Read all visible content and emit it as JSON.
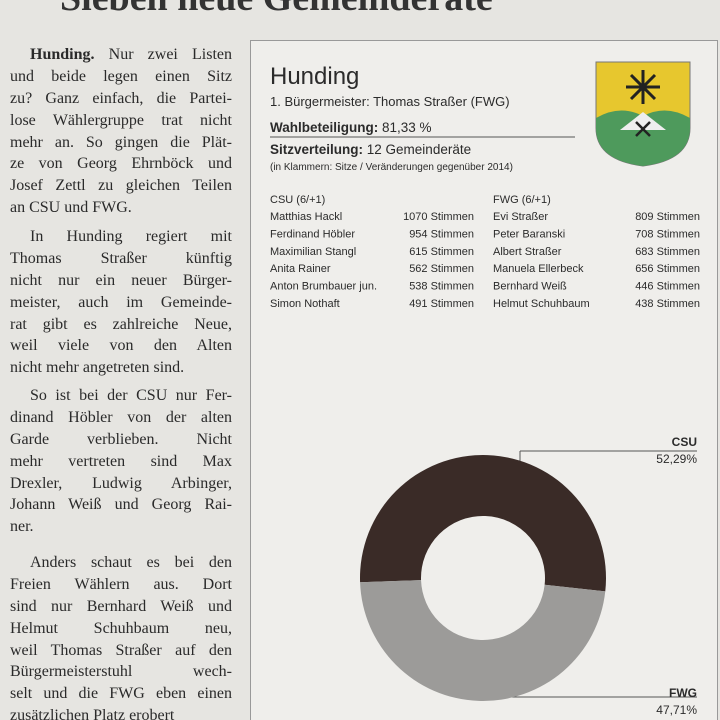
{
  "headline": "Sieben neue Gemeinderäte",
  "article": {
    "lead": "Hunding.",
    "paragraphs": [
      [
        "Nur zwei Listen",
        "und beide legen einen Sitz",
        "zu? Ganz einfach, die Partei-",
        "lose Wählergruppe trat nicht",
        "mehr an. So gingen die Plät-",
        "ze von Georg Ehrnböck und",
        "Josef Zettl zu gleichen Teilen",
        "an CSU und FWG."
      ],
      [
        "In Hunding regiert mit",
        "Thomas Straßer künftig",
        "nicht nur ein neuer Bürger-",
        "meister, auch im Gemeinde-",
        "rat gibt es zahlreiche Neue,",
        "weil viele von den Alten",
        "nicht mehr angetreten sind."
      ],
      [
        "So ist bei der CSU nur Fer-",
        "dinand Höbler von der alten",
        "Garde verblieben. Nicht",
        "mehr vertreten sind Max",
        "Drexler, Ludwig Arbinger,",
        "Johann Weiß und Georg Rai-",
        "ner."
      ],
      [
        "Anders schaut es bei den",
        "Freien Wählern aus. Dort",
        "sind nur Bernhard Weiß und",
        "Helmut Schuhbaum neu,",
        "weil Thomas Straßer auf den",
        "Bürgermeisterstuhl wech-",
        "selt und die FWG eben einen",
        "zusätzlichen Platz erobert"
      ]
    ]
  },
  "box": {
    "title": "Hunding",
    "mayor": "1. Bürgermeister: Thomas Straßer (FWG)",
    "turnout_label": "Wahlbeteiligung:",
    "turnout_value": "81,33 %",
    "seats_label": "Sitzverteilung:",
    "seats_value": "12 Gemeinderäte",
    "note": "(in Klammern: Sitze / Veränderungen gegenüber 2014)",
    "lists": [
      {
        "header": "CSU (6/+1)",
        "rows": [
          [
            "Matthias Hackl",
            "1070 Stimmen"
          ],
          [
            "Ferdinand Höbler",
            "954 Stimmen"
          ],
          [
            "Maximilian Stangl",
            "615 Stimmen"
          ],
          [
            "Anita Rainer",
            "562 Stimmen"
          ],
          [
            "Anton Brumbauer jun.",
            "538 Stimmen"
          ],
          [
            "Simon Nothaft",
            "491 Stimmen"
          ]
        ]
      },
      {
        "header": "FWG (6/+1)",
        "rows": [
          [
            "Evi Straßer",
            "809 Stimmen"
          ],
          [
            "Peter Baranski",
            "708 Stimmen"
          ],
          [
            "Albert Straßer",
            "683 Stimmen"
          ],
          [
            "Manuela Ellerbeck",
            "656 Stimmen"
          ],
          [
            "Bernhard Weiß",
            "446 Stimmen"
          ],
          [
            "Helmut Schuhbaum",
            "438 Stimmen"
          ]
        ]
      }
    ]
  },
  "chart_data": {
    "type": "pie",
    "donut": true,
    "categories": [
      "CSU",
      "FWG"
    ],
    "values": [
      52.29,
      47.71
    ],
    "value_labels": [
      "52,29%",
      "47,71%"
    ],
    "colors": [
      "#3a2b27",
      "#9c9b99"
    ]
  }
}
